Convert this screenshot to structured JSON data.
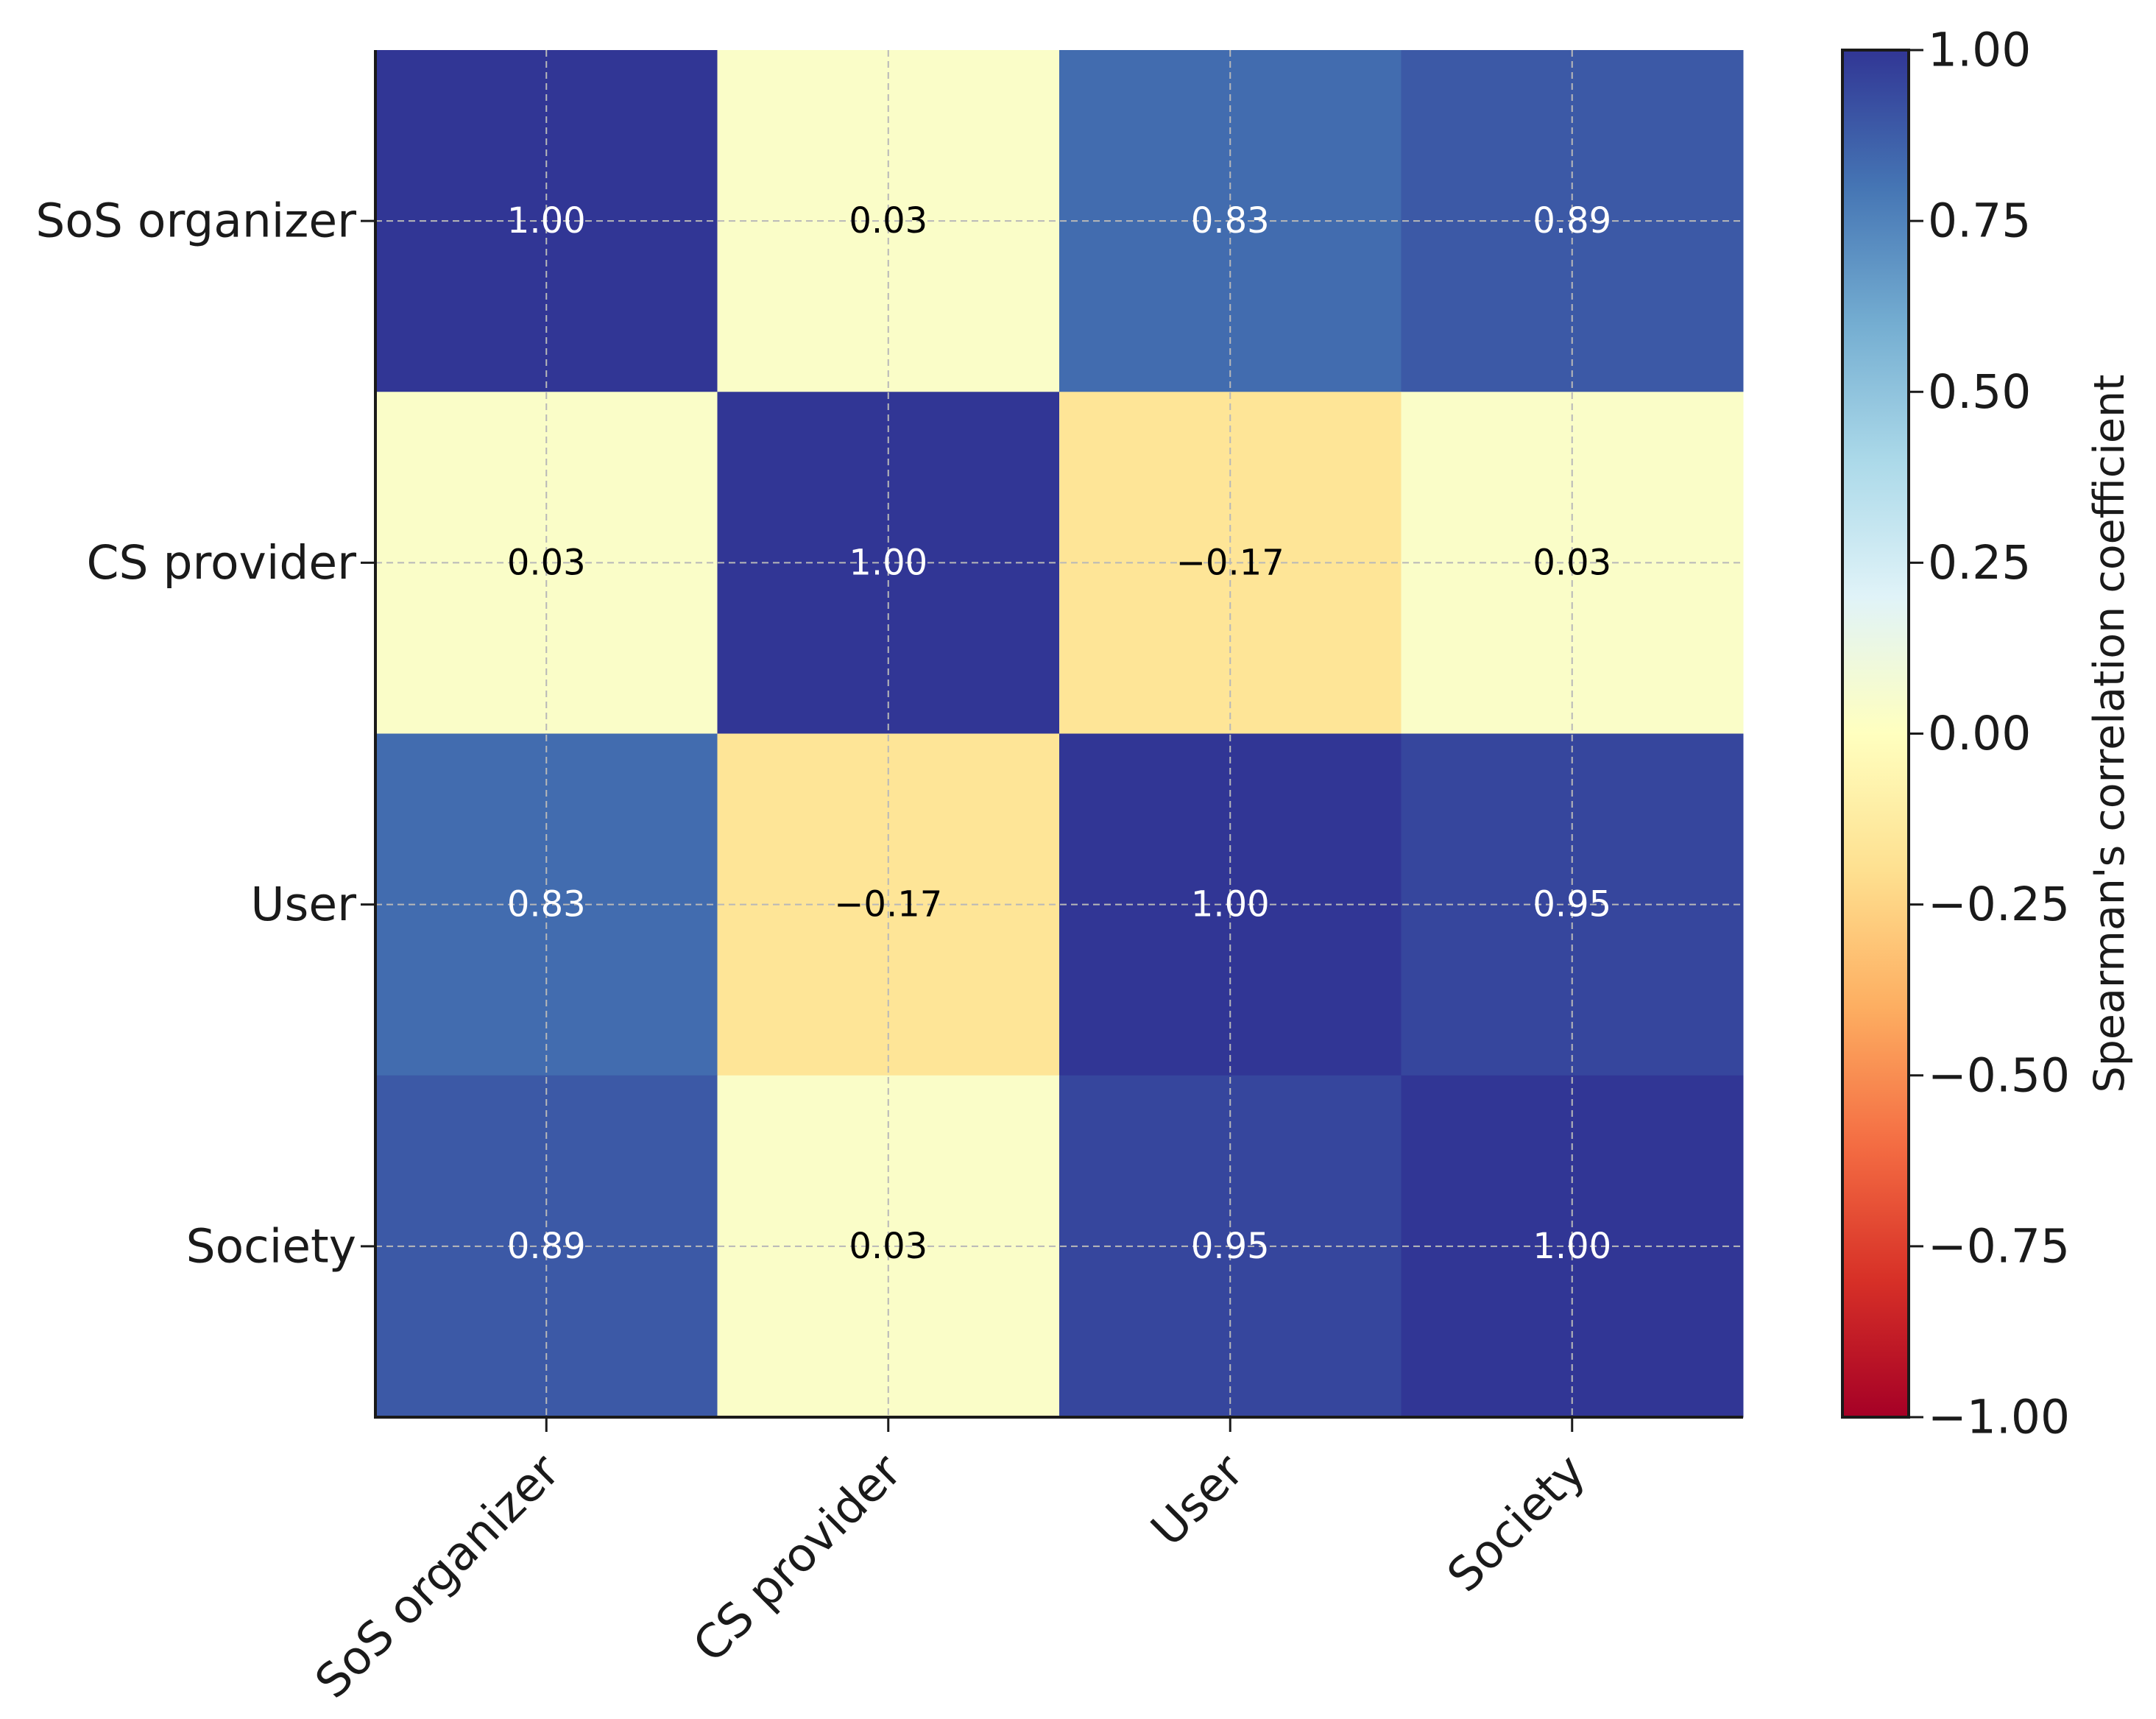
{
  "chart_data": {
    "type": "heatmap",
    "title": "",
    "row_labels": [
      "SoS organizer",
      "CS provider",
      "User",
      "Society"
    ],
    "col_labels": [
      "SoS organizer",
      "CS provider",
      "User",
      "Society"
    ],
    "values": [
      [
        1.0,
        0.03,
        0.83,
        0.89
      ],
      [
        0.03,
        1.0,
        -0.17,
        0.03
      ],
      [
        0.83,
        -0.17,
        1.0,
        0.95
      ],
      [
        0.89,
        0.03,
        0.95,
        1.0
      ]
    ],
    "cell_text": [
      [
        "1.00",
        "0.03",
        "0.83",
        "0.89"
      ],
      [
        "0.03",
        "1.00",
        "−0.17",
        "0.03"
      ],
      [
        "0.83",
        "−0.17",
        "1.00",
        "0.95"
      ],
      [
        "0.89",
        "0.03",
        "0.95",
        "1.00"
      ]
    ],
    "colormap": "RdYlBu",
    "vmin": -1.0,
    "vmax": 1.0,
    "grid": true,
    "colorbar": {
      "label": "Spearman's correlation coefficient",
      "ticks": [
        1.0,
        0.75,
        0.5,
        0.25,
        0.0,
        -0.25,
        -0.5,
        -0.75,
        -1.0
      ],
      "tick_labels": [
        "1.00",
        "0.75",
        "0.50",
        "0.25",
        "0.00",
        "−0.25",
        "−0.50",
        "−0.75",
        "−1.00"
      ]
    }
  }
}
